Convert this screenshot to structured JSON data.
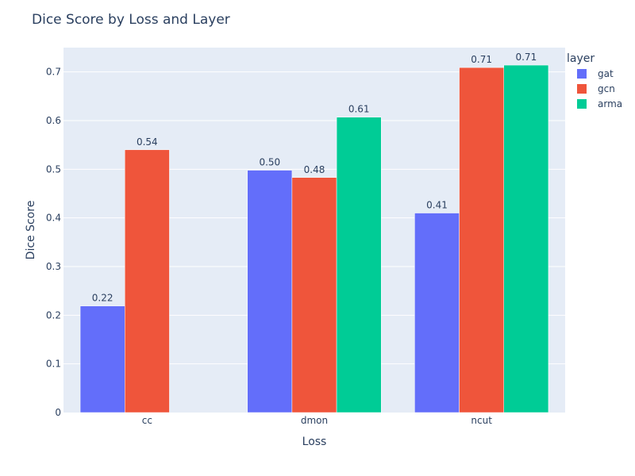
{
  "chart_data": {
    "type": "bar",
    "title": "Dice Score by Loss and Layer",
    "xlabel": "Loss",
    "ylabel": "Dice Score",
    "categories": [
      "cc",
      "dmon",
      "ncut"
    ],
    "ylim": [
      0,
      0.75
    ],
    "yticks": [
      0,
      0.1,
      0.2,
      0.3,
      0.4,
      0.5,
      0.6,
      0.7
    ],
    "ytick_labels": [
      "0",
      "0.1",
      "0.2",
      "0.3",
      "0.4",
      "0.5",
      "0.6",
      "0.7"
    ],
    "grid": true,
    "legend": {
      "title": "layer",
      "position": "top-right"
    },
    "series": [
      {
        "name": "gat",
        "color": "#636efa",
        "values": [
          0.219,
          0.498,
          0.41
        ],
        "labels": [
          "0.22",
          "0.50",
          "0.41"
        ]
      },
      {
        "name": "gcn",
        "color": "#ef553b",
        "values": [
          0.54,
          0.483,
          0.709
        ],
        "labels": [
          "0.54",
          "0.48",
          "0.71"
        ]
      },
      {
        "name": "arma",
        "color": "#00cc96",
        "values": [
          null,
          0.607,
          0.714
        ],
        "labels": [
          "",
          "0.61",
          "0.71"
        ]
      }
    ]
  }
}
